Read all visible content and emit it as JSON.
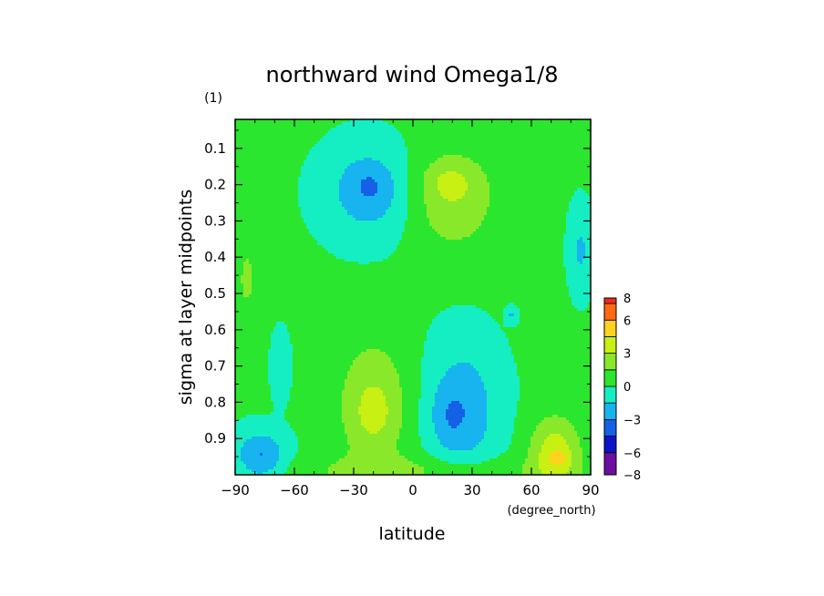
{
  "chart_data": {
    "type": "heatmap",
    "title": "northward wind Omega1/8",
    "ylabel": "sigma at layer midpoints",
    "ylabel_units": "(1)",
    "xlabel": "latitude",
    "xlabel_units": "(degree_north)",
    "xlim": [
      -90,
      90
    ],
    "ylim": [
      1.0,
      0.02
    ],
    "x_ticks": [
      -90,
      -60,
      -30,
      0,
      30,
      60,
      90
    ],
    "x_tick_labels": [
      "−90",
      "−60",
      "−30",
      "0",
      "30",
      "60",
      "90"
    ],
    "y_ticks": [
      0.1,
      0.2,
      0.3,
      0.4,
      0.5,
      0.6,
      0.7,
      0.8,
      0.9
    ],
    "y_tick_labels": [
      "0.1",
      "0.2",
      "0.3",
      "0.4",
      "0.5",
      "0.6",
      "0.7",
      "0.8",
      "0.9"
    ],
    "colorbar": {
      "levels": [
        -8,
        -6,
        -4.5,
        -3,
        -1.5,
        0,
        1.5,
        3,
        4.5,
        6,
        7.5,
        8
      ],
      "colors": [
        "#6a0fa0",
        "#0b14c8",
        "#1560e6",
        "#17b4f0",
        "#15eec2",
        "#2be62e",
        "#8ae82a",
        "#c8f012",
        "#ffd21e",
        "#ff6a12",
        "#f02a1e",
        "#f29a9a"
      ],
      "labels": [
        {
          "value": 8,
          "text": "8"
        },
        {
          "value": 6,
          "text": "6"
        },
        {
          "value": 3,
          "text": "3"
        },
        {
          "value": 0,
          "text": "0"
        },
        {
          "value": -3,
          "text": "−3"
        },
        {
          "value": -6,
          "text": "−6"
        },
        {
          "value": -8,
          "text": "−8"
        }
      ]
    },
    "base_value": 0.2,
    "features": [
      {
        "lat": -22,
        "sigma": 0.22,
        "sx": 16,
        "sy": 0.09,
        "amp": -2.6
      },
      {
        "lat": -22,
        "sigma": 0.2,
        "sx": 7,
        "sy": 0.04,
        "amp": -1.0
      },
      {
        "lat": 20,
        "sigma": 0.24,
        "sx": 16,
        "sy": 0.1,
        "amp": 2.5
      },
      {
        "lat": 18,
        "sigma": 0.19,
        "sx": 9,
        "sy": 0.035,
        "amp": 1.3
      },
      {
        "lat": 25,
        "sigma": 0.82,
        "sx": 13,
        "sy": 0.13,
        "amp": -2.8
      },
      {
        "lat": 18,
        "sigma": 0.84,
        "sx": 6,
        "sy": 0.05,
        "amp": -1.0
      },
      {
        "lat": -20,
        "sigma": 0.81,
        "sx": 13,
        "sy": 0.13,
        "amp": 2.7
      },
      {
        "lat": -20,
        "sigma": 0.83,
        "sx": 6,
        "sy": 0.05,
        "amp": 1.0
      },
      {
        "lat": -77,
        "sigma": 0.95,
        "sx": 9,
        "sy": 0.05,
        "amp": -3.4
      },
      {
        "lat": 72,
        "sigma": 0.94,
        "sx": 9,
        "sy": 0.07,
        "amp": 3.8
      },
      {
        "lat": 74,
        "sigma": 0.955,
        "sx": 3,
        "sy": 0.012,
        "amp": 1.8
      },
      {
        "lat": -84,
        "sigma": 0.46,
        "sx": 3,
        "sy": 0.06,
        "amp": 1.9
      },
      {
        "lat": 85,
        "sigma": 0.38,
        "sx": 4,
        "sy": 0.08,
        "amp": -1.9
      },
      {
        "lat": -67,
        "sigma": 0.7,
        "sx": 3,
        "sy": 0.06,
        "amp": -1.7
      },
      {
        "lat": 50,
        "sigma": 0.56,
        "sx": 2,
        "sy": 0.015,
        "amp": -1.8
      },
      {
        "lat": 0,
        "sigma": 0.99,
        "sx": 50,
        "sy": 0.03,
        "amp": 1.6
      }
    ]
  }
}
